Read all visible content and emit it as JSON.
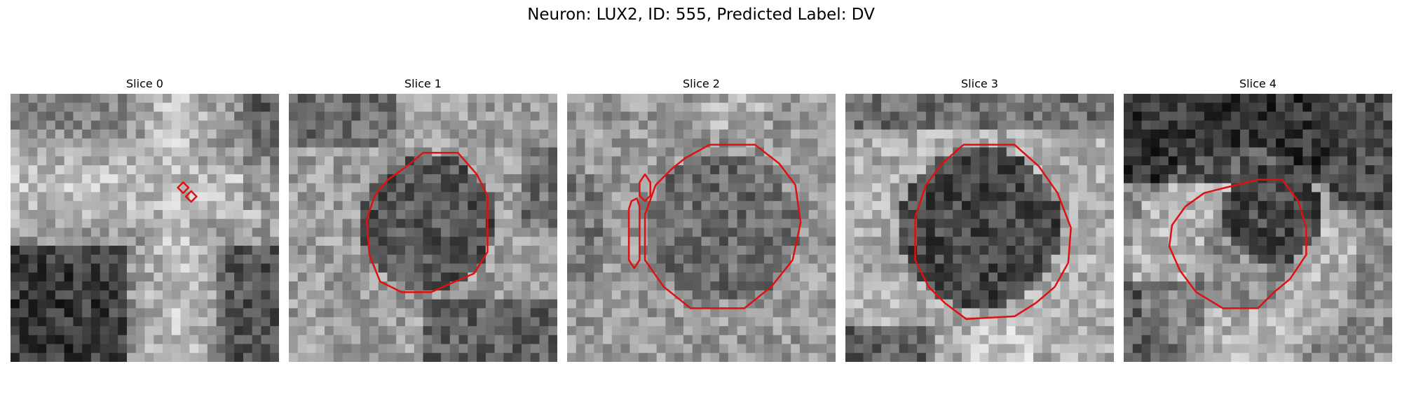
{
  "figure": {
    "title": "Neuron: LUX2, ID: 555, Predicted Label: DV"
  },
  "panels": [
    {
      "title": "Slice 0",
      "image_theme": "bright cross-shaped textured region, dark lower corners",
      "contour_color": "#e01010"
    },
    {
      "title": "Slice 1",
      "image_theme": "dark round cell body on bright background",
      "contour_color": "#e01010"
    },
    {
      "title": "Slice 2",
      "image_theme": "mid-grey round cell body with side fragments",
      "contour_color": "#e01010"
    },
    {
      "title": "Slice 3",
      "image_theme": "dark round cell body on bright background",
      "contour_color": "#e01010"
    },
    {
      "title": "Slice 4",
      "image_theme": "dark upper region, bright lower ring",
      "contour_color": "#e01010"
    }
  ]
}
